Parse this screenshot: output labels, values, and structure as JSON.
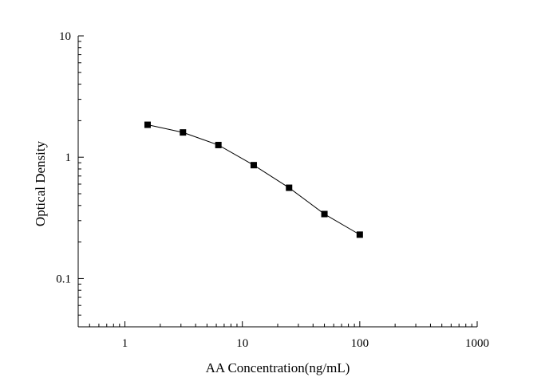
{
  "chart_data": {
    "type": "line",
    "title": "",
    "xlabel": "AA Concentration(ng/mL)",
    "ylabel": "Optical Density",
    "xscale": "log",
    "yscale": "log",
    "xlim": [
      0.4,
      1000
    ],
    "ylim": [
      0.04,
      10
    ],
    "x_ticks": [
      {
        "value": 1,
        "label": "1"
      },
      {
        "value": 10,
        "label": "10"
      },
      {
        "value": 100,
        "label": "100"
      },
      {
        "value": 1000,
        "label": "1000"
      }
    ],
    "y_ticks": [
      {
        "value": 0.1,
        "label": "0.1"
      },
      {
        "value": 1,
        "label": "1"
      },
      {
        "value": 10,
        "label": "10"
      }
    ],
    "grid": false,
    "legend": "none",
    "marker": "square",
    "colors": {
      "line": "#000000",
      "marker": "#000000",
      "axis": "#000000"
    },
    "series": [
      {
        "x": [
          1.56,
          3.12,
          6.25,
          12.5,
          25,
          50,
          100
        ],
        "y": [
          1.85,
          1.6,
          1.26,
          0.86,
          0.56,
          0.34,
          0.23
        ]
      }
    ]
  }
}
